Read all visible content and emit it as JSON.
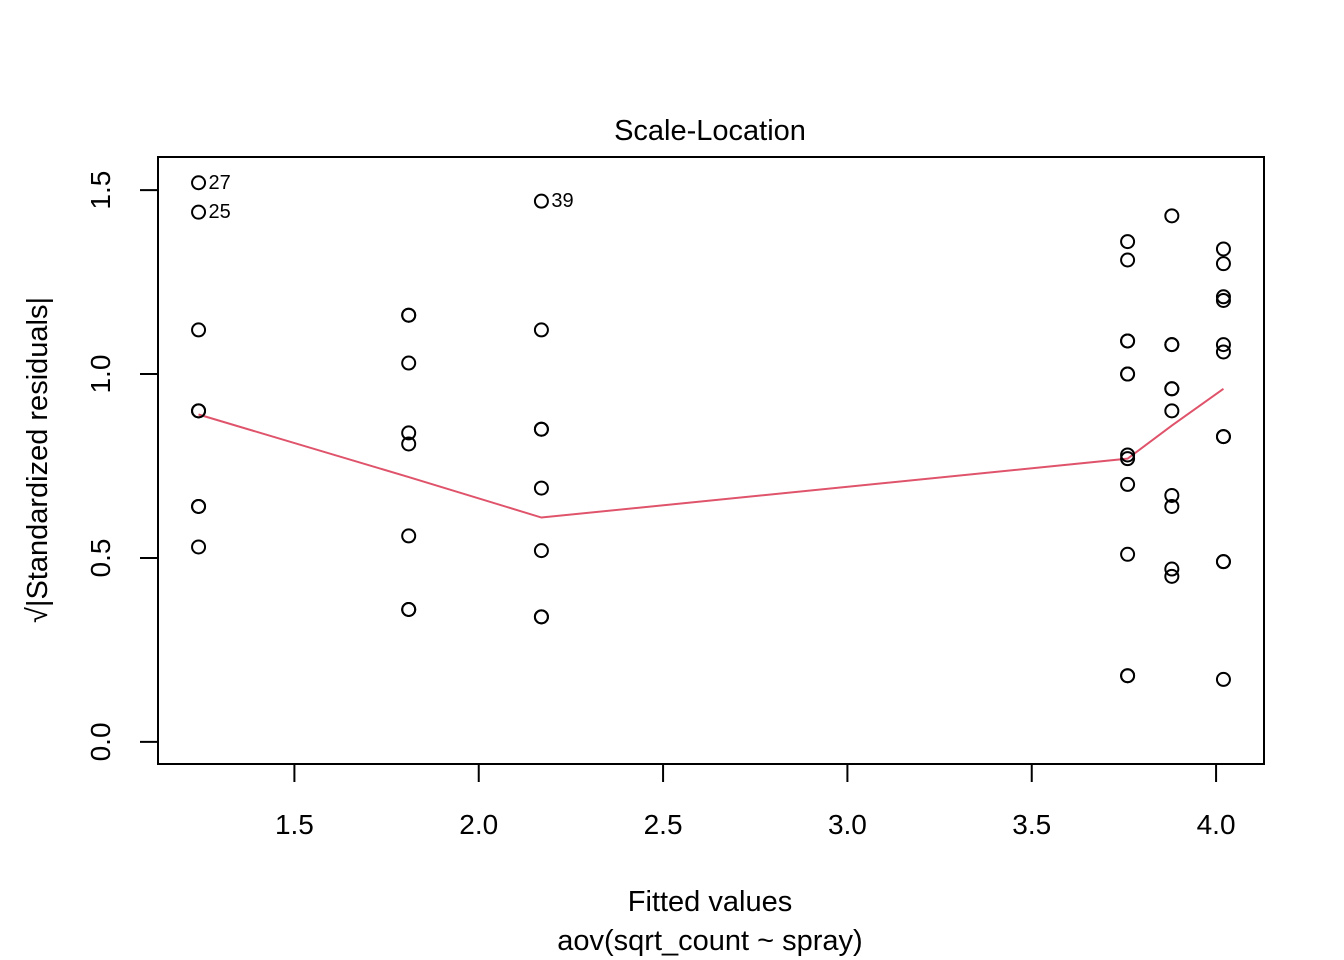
{
  "chart_data": {
    "type": "scatter",
    "title": "Scale-Location",
    "xlabel": "Fitted values",
    "xlabel_sub": "aov(sqrt_count ~ spray)",
    "ylabel": "√|Standardized residuals|",
    "xlim": [
      1.13,
      4.13
    ],
    "ylim": [
      -0.06,
      1.59
    ],
    "x_ticks": [
      1.5,
      2.0,
      2.5,
      3.0,
      3.5,
      4.0
    ],
    "x_tick_labels": [
      "1.5",
      "2.0",
      "2.5",
      "3.0",
      "3.5",
      "4.0"
    ],
    "y_ticks": [
      0.0,
      0.5,
      1.0,
      1.5
    ],
    "y_tick_labels": [
      "0.0",
      "0.5",
      "1.0",
      "1.5"
    ],
    "grid": false,
    "point_color": "#000000",
    "smoother_color": "#DF536B",
    "points": [
      {
        "x": 1.24,
        "y": 1.52,
        "label": "27"
      },
      {
        "x": 1.24,
        "y": 1.44,
        "label": "25"
      },
      {
        "x": 1.24,
        "y": 1.12
      },
      {
        "x": 1.24,
        "y": 0.9
      },
      {
        "x": 1.24,
        "y": 0.9
      },
      {
        "x": 1.24,
        "y": 0.64
      },
      {
        "x": 1.24,
        "y": 0.64
      },
      {
        "x": 1.24,
        "y": 0.53
      },
      {
        "x": 1.81,
        "y": 1.16
      },
      {
        "x": 1.81,
        "y": 1.16
      },
      {
        "x": 1.81,
        "y": 1.03
      },
      {
        "x": 1.81,
        "y": 0.84
      },
      {
        "x": 1.81,
        "y": 0.81
      },
      {
        "x": 1.81,
        "y": 0.56
      },
      {
        "x": 1.81,
        "y": 0.36
      },
      {
        "x": 1.81,
        "y": 0.36
      },
      {
        "x": 2.17,
        "y": 1.47,
        "label": "39"
      },
      {
        "x": 2.17,
        "y": 1.12
      },
      {
        "x": 2.17,
        "y": 0.85
      },
      {
        "x": 2.17,
        "y": 0.85
      },
      {
        "x": 2.17,
        "y": 0.69
      },
      {
        "x": 2.17,
        "y": 0.52
      },
      {
        "x": 2.17,
        "y": 0.34
      },
      {
        "x": 2.17,
        "y": 0.34
      },
      {
        "x": 3.76,
        "y": 1.36
      },
      {
        "x": 3.76,
        "y": 1.31
      },
      {
        "x": 3.76,
        "y": 1.09
      },
      {
        "x": 3.76,
        "y": 1.09
      },
      {
        "x": 3.76,
        "y": 1.0
      },
      {
        "x": 3.76,
        "y": 1.0
      },
      {
        "x": 3.76,
        "y": 0.78
      },
      {
        "x": 3.76,
        "y": 0.77
      },
      {
        "x": 3.76,
        "y": 0.7
      },
      {
        "x": 3.76,
        "y": 0.51
      },
      {
        "x": 3.76,
        "y": 0.18
      },
      {
        "x": 3.76,
        "y": 0.18
      },
      {
        "x": 3.88,
        "y": 1.43
      },
      {
        "x": 3.88,
        "y": 1.08
      },
      {
        "x": 3.88,
        "y": 1.08
      },
      {
        "x": 3.88,
        "y": 0.96
      },
      {
        "x": 3.88,
        "y": 0.96
      },
      {
        "x": 3.88,
        "y": 0.9
      },
      {
        "x": 3.88,
        "y": 0.67
      },
      {
        "x": 3.88,
        "y": 0.64
      },
      {
        "x": 3.88,
        "y": 0.47
      },
      {
        "x": 3.88,
        "y": 0.45
      },
      {
        "x": 4.02,
        "y": 1.34
      },
      {
        "x": 4.02,
        "y": 1.3
      },
      {
        "x": 4.02,
        "y": 1.21
      },
      {
        "x": 4.02,
        "y": 1.2
      },
      {
        "x": 4.02,
        "y": 1.08
      },
      {
        "x": 4.02,
        "y": 1.06
      },
      {
        "x": 4.02,
        "y": 0.83
      },
      {
        "x": 4.02,
        "y": 0.83
      },
      {
        "x": 4.02,
        "y": 0.49
      },
      {
        "x": 4.02,
        "y": 0.49
      },
      {
        "x": 4.02,
        "y": 0.17
      }
    ],
    "smoother": {
      "x": [
        1.24,
        1.81,
        2.17,
        3.76,
        3.88,
        4.02
      ],
      "y": [
        0.89,
        0.72,
        0.61,
        0.77,
        0.86,
        0.96
      ]
    }
  }
}
